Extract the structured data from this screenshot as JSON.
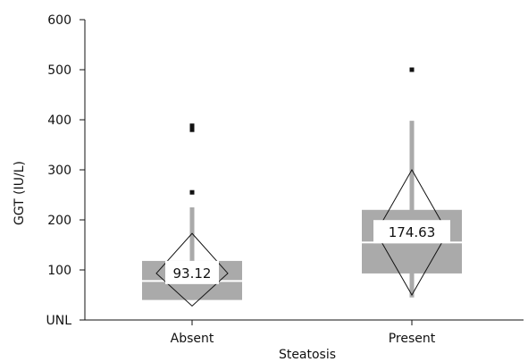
{
  "chart_data": {
    "type": "box",
    "xlabel": "Steatosis",
    "ylabel": "GGT (IU/L)",
    "ylim": [
      0,
      600
    ],
    "y_ticks": [
      {
        "value": 0,
        "label": "UNL"
      },
      {
        "value": 100,
        "label": "100"
      },
      {
        "value": 200,
        "label": "200"
      },
      {
        "value": 300,
        "label": "300"
      },
      {
        "value": 400,
        "label": "400"
      },
      {
        "value": 500,
        "label": "500"
      },
      {
        "value": 600,
        "label": "600"
      }
    ],
    "grid": false,
    "colors": {
      "box": "#aaaaaa",
      "outlier": "#111111",
      "diamond": "#111111",
      "axis": "#111111"
    },
    "categories": [
      "Absent",
      "Present"
    ],
    "groups": [
      {
        "category": "Absent",
        "whisker_low": 40,
        "q1": 40,
        "median": 78,
        "q3": 118,
        "whisker_high": 225,
        "mean": 93.12,
        "mean_label": "93.12",
        "ci_low": 28,
        "ci_high": 173,
        "outliers": [
          255,
          380,
          388
        ]
      },
      {
        "category": "Present",
        "whisker_low": 45,
        "q1": 93,
        "median": 155,
        "q3": 220,
        "whisker_high": 398,
        "mean": 174.63,
        "mean_label": "174.63",
        "ci_low": 50,
        "ci_high": 300,
        "outliers": [
          500
        ]
      }
    ]
  }
}
